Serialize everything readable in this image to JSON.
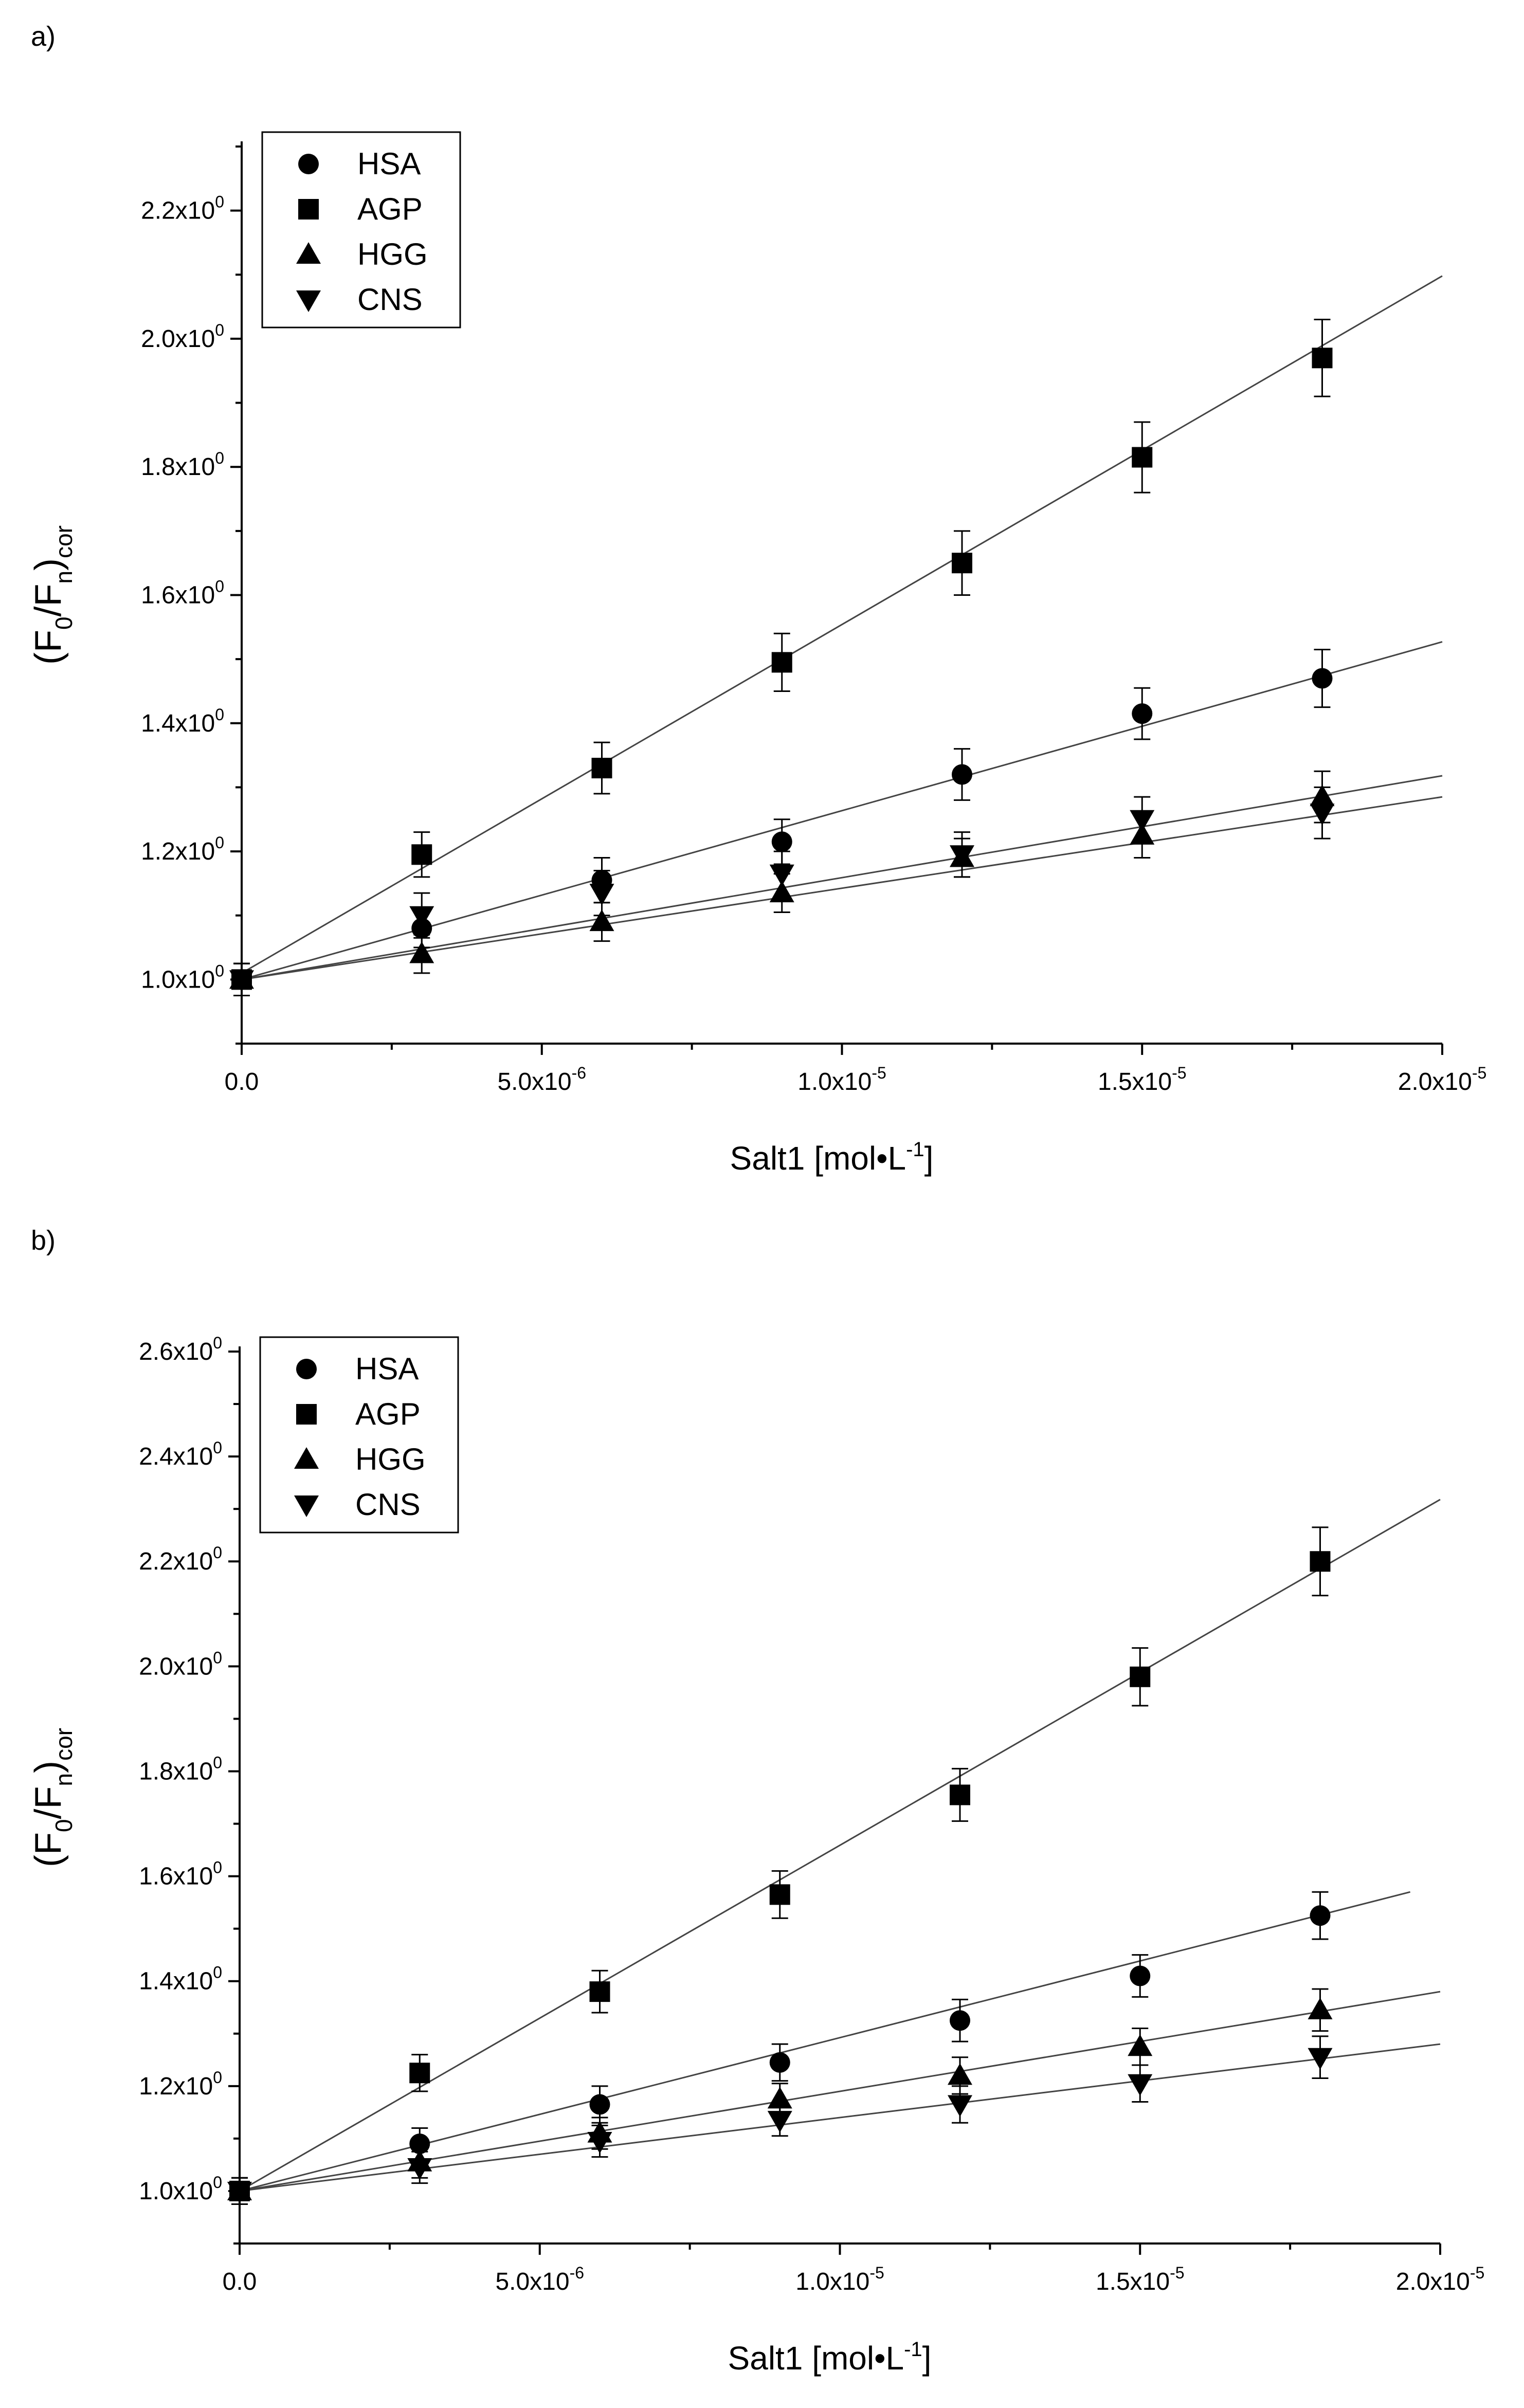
{
  "chart_data": [
    {
      "panel_label": "a)",
      "type": "scatter",
      "xlabel": {
        "main": "Salt1 [mol•L",
        "sup": "-1",
        "end": "]"
      },
      "ylabel": {
        "open": "(F",
        "sub0": "0",
        "slash": "/F",
        "subn": "n",
        "close": ")",
        "subcor": "cor"
      },
      "xlim": [
        0,
        2e-05
      ],
      "ylim": [
        0.9,
        2.3
      ],
      "xticks": [
        {
          "value": 0,
          "label": "0.0",
          "exp": ""
        },
        {
          "value": 5e-06,
          "label": "5.0x10",
          "exp": "-6"
        },
        {
          "value": 1e-05,
          "label": "1.0x10",
          "exp": "-5"
        },
        {
          "value": 1.5e-05,
          "label": "1.5x10",
          "exp": "-5"
        },
        {
          "value": 2e-05,
          "label": "2.0x10",
          "exp": "-5"
        }
      ],
      "yticks": [
        {
          "value": 1.0,
          "label": "1.0x10",
          "exp": "0"
        },
        {
          "value": 1.2,
          "label": "1.2x10",
          "exp": "0"
        },
        {
          "value": 1.4,
          "label": "1.4x10",
          "exp": "0"
        },
        {
          "value": 1.6,
          "label": "1.6x10",
          "exp": "0"
        },
        {
          "value": 1.8,
          "label": "1.8x10",
          "exp": "0"
        },
        {
          "value": 2.0,
          "label": "2.0x10",
          "exp": "0"
        },
        {
          "value": 2.2,
          "label": "2.2x10",
          "exp": "0"
        }
      ],
      "legend_position": "top-left",
      "series": [
        {
          "name": "HSA",
          "marker": "circle",
          "x": [
            0,
            3e-06,
            6e-06,
            9e-06,
            1.2e-05,
            1.5e-05,
            1.8e-05
          ],
          "y": [
            1.0,
            1.08,
            1.155,
            1.215,
            1.32,
            1.415,
            1.47
          ],
          "err": [
            0.025,
            0.03,
            0.035,
            0.035,
            0.04,
            0.04,
            0.045
          ],
          "fit": [
            [
              0,
              1.0
            ],
            [
              2e-05,
              1.527
            ]
          ]
        },
        {
          "name": "AGP",
          "marker": "square",
          "x": [
            0,
            3e-06,
            6e-06,
            9e-06,
            1.2e-05,
            1.5e-05,
            1.8e-05
          ],
          "y": [
            1.0,
            1.195,
            1.33,
            1.495,
            1.65,
            1.815,
            1.97
          ],
          "err": [
            0.025,
            0.035,
            0.04,
            0.045,
            0.05,
            0.055,
            0.06
          ],
          "fit": [
            [
              0,
              1.01
            ],
            [
              2e-05,
              2.098
            ]
          ]
        },
        {
          "name": "HGG",
          "marker": "triangle-up",
          "x": [
            0,
            3e-06,
            6e-06,
            9e-06,
            1.2e-05,
            1.5e-05,
            1.8e-05
          ],
          "y": [
            1.0,
            1.04,
            1.09,
            1.135,
            1.19,
            1.225,
            1.285
          ],
          "err": [
            0.025,
            0.03,
            0.03,
            0.03,
            0.03,
            0.035,
            0.04
          ],
          "fit": [
            [
              0,
              1.0
            ],
            [
              2e-05,
              1.318
            ]
          ]
        },
        {
          "name": "CNS",
          "marker": "triangle-down",
          "x": [
            0,
            3e-06,
            6e-06,
            9e-06,
            1.2e-05,
            1.5e-05,
            1.8e-05
          ],
          "y": [
            1.0,
            1.1,
            1.135,
            1.165,
            1.195,
            1.25,
            1.26
          ],
          "err": [
            0.025,
            0.035,
            0.035,
            0.035,
            0.035,
            0.035,
            0.04
          ],
          "fit": [
            [
              0,
              1.0
            ],
            [
              2e-05,
              1.285
            ]
          ]
        }
      ]
    },
    {
      "panel_label": "b)",
      "type": "scatter",
      "xlabel": {
        "main": "Salt1 [mol•L",
        "sup": "-1",
        "end": "]"
      },
      "ylabel": {
        "open": "(F",
        "sub0": "0",
        "slash": "/F",
        "subn": "n",
        "close": ")",
        "subcor": "cor"
      },
      "xlim": [
        0,
        2e-05
      ],
      "ylim": [
        0.9,
        2.6
      ],
      "xticks": [
        {
          "value": 0,
          "label": "0.0",
          "exp": ""
        },
        {
          "value": 5e-06,
          "label": "5.0x10",
          "exp": "-6"
        },
        {
          "value": 1e-05,
          "label": "1.0x10",
          "exp": "-5"
        },
        {
          "value": 1.5e-05,
          "label": "1.5x10",
          "exp": "-5"
        },
        {
          "value": 2e-05,
          "label": "2.0x10",
          "exp": "-5"
        }
      ],
      "yticks": [
        {
          "value": 1.0,
          "label": "1.0x10",
          "exp": "0"
        },
        {
          "value": 1.2,
          "label": "1.2x10",
          "exp": "0"
        },
        {
          "value": 1.4,
          "label": "1.4x10",
          "exp": "0"
        },
        {
          "value": 1.6,
          "label": "1.6x10",
          "exp": "0"
        },
        {
          "value": 1.8,
          "label": "1.8x10",
          "exp": "0"
        },
        {
          "value": 2.0,
          "label": "2.0x10",
          "exp": "0"
        },
        {
          "value": 2.2,
          "label": "2.2x10",
          "exp": "0"
        },
        {
          "value": 2.4,
          "label": "2.4x10",
          "exp": "0"
        },
        {
          "value": 2.6,
          "label": "2.6x10",
          "exp": "0"
        }
      ],
      "legend_position": "top-left",
      "series": [
        {
          "name": "HSA",
          "marker": "circle",
          "x": [
            0,
            3e-06,
            6e-06,
            9e-06,
            1.2e-05,
            1.5e-05,
            1.8e-05
          ],
          "y": [
            1.0,
            1.09,
            1.165,
            1.245,
            1.325,
            1.41,
            1.525
          ],
          "err": [
            0.025,
            0.03,
            0.035,
            0.035,
            0.04,
            0.04,
            0.045
          ],
          "fit": [
            [
              0,
              1.0
            ],
            [
              1.95e-05,
              1.57
            ]
          ]
        },
        {
          "name": "AGP",
          "marker": "square",
          "x": [
            0,
            3e-06,
            6e-06,
            9e-06,
            1.2e-05,
            1.5e-05,
            1.8e-05
          ],
          "y": [
            1.0,
            1.225,
            1.38,
            1.565,
            1.755,
            1.98,
            2.2
          ],
          "err": [
            0.025,
            0.035,
            0.04,
            0.045,
            0.05,
            0.055,
            0.065
          ],
          "fit": [
            [
              0,
              1.0
            ],
            [
              2e-05,
              2.318
            ]
          ]
        },
        {
          "name": "HGG",
          "marker": "triangle-up",
          "x": [
            0,
            3e-06,
            6e-06,
            9e-06,
            1.2e-05,
            1.5e-05,
            1.8e-05
          ],
          "y": [
            1.0,
            1.055,
            1.11,
            1.175,
            1.22,
            1.275,
            1.345
          ],
          "err": [
            0.025,
            0.03,
            0.03,
            0.03,
            0.035,
            0.035,
            0.04
          ],
          "fit": [
            [
              0,
              1.0
            ],
            [
              2e-05,
              1.38
            ]
          ]
        },
        {
          "name": "CNS",
          "marker": "triangle-down",
          "x": [
            0,
            3e-06,
            6e-06,
            9e-06,
            1.2e-05,
            1.5e-05,
            1.8e-05
          ],
          "y": [
            1.0,
            1.045,
            1.095,
            1.135,
            1.165,
            1.205,
            1.255
          ],
          "err": [
            0.025,
            0.03,
            0.03,
            0.03,
            0.035,
            0.035,
            0.04
          ],
          "fit": [
            [
              0,
              1.0
            ],
            [
              2e-05,
              1.28
            ]
          ]
        }
      ]
    }
  ]
}
